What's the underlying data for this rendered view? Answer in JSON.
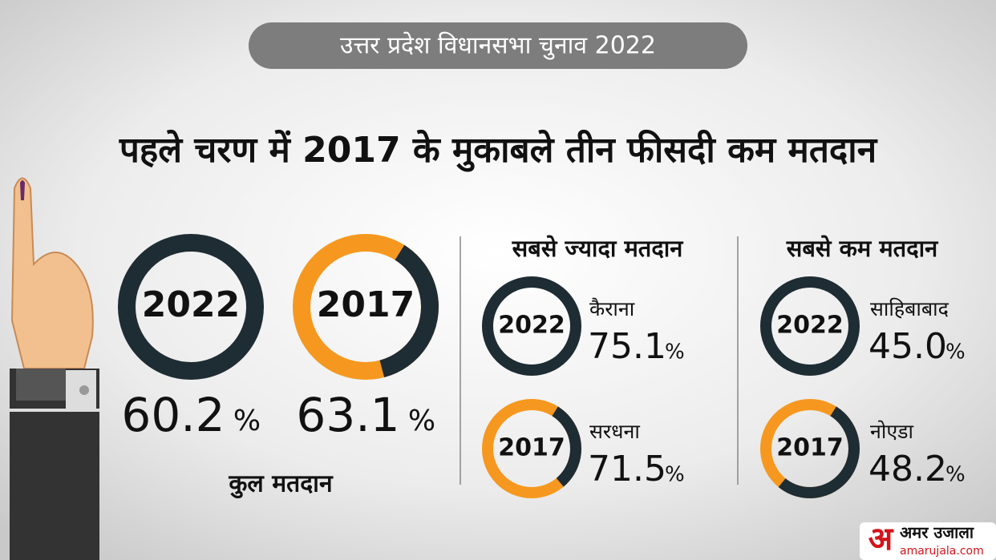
{
  "header": {
    "badge": "उत्तर प्रदेश विधानसभा चुनाव 2022",
    "title": "पहले चरण में 2017 के मुकाबले तीन फीसदी कम मतदान"
  },
  "total": {
    "label": "कुल मतदान",
    "items": [
      {
        "year": "2022",
        "value": "60.2",
        "unit": "%"
      },
      {
        "year": "2017",
        "value": "63.1",
        "unit": "%"
      }
    ]
  },
  "highest": {
    "title": "सबसे ज्यादा मतदान",
    "items": [
      {
        "year": "2022",
        "place": "कैराना",
        "value": "75.1",
        "unit": "%"
      },
      {
        "year": "2017",
        "place": "सरधना",
        "value": "71.5",
        "unit": "%"
      }
    ]
  },
  "lowest": {
    "title": "सबसे कम मतदान",
    "items": [
      {
        "year": "2022",
        "place": "साहिबाबाद",
        "value": "45.0",
        "unit": "%"
      },
      {
        "year": "2017",
        "place": "नोएडा",
        "value": "48.2",
        "unit": "%"
      }
    ]
  },
  "logo": {
    "mark": "अ",
    "name": "अमर उजाला",
    "url": "amarujala.com"
  }
}
